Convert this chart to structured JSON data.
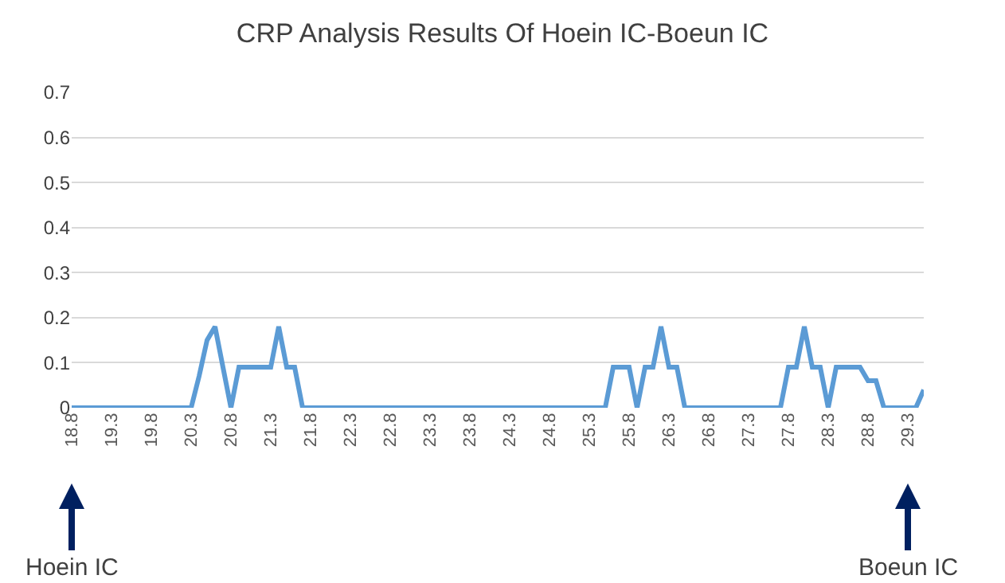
{
  "chart_data": {
    "type": "line",
    "title": "CRP Analysis Results Of Hoein IC-Boeun IC",
    "x": [
      18.8,
      18.9,
      19.0,
      19.1,
      19.2,
      19.3,
      19.4,
      19.5,
      19.6,
      19.7,
      19.8,
      19.9,
      20.0,
      20.1,
      20.2,
      20.3,
      20.4,
      20.5,
      20.6,
      20.7,
      20.8,
      20.9,
      21.0,
      21.1,
      21.2,
      21.3,
      21.4,
      21.5,
      21.6,
      21.7,
      21.8,
      21.9,
      22.0,
      22.1,
      22.2,
      22.3,
      22.4,
      22.5,
      22.6,
      22.7,
      22.8,
      22.9,
      23.0,
      23.1,
      23.2,
      23.3,
      23.4,
      23.5,
      23.6,
      23.7,
      23.8,
      23.9,
      24.0,
      24.1,
      24.2,
      24.3,
      24.4,
      24.5,
      24.6,
      24.7,
      24.8,
      24.9,
      25.0,
      25.1,
      25.2,
      25.3,
      25.4,
      25.5,
      25.6,
      25.7,
      25.8,
      25.9,
      26.0,
      26.1,
      26.2,
      26.3,
      26.4,
      26.5,
      26.6,
      26.7,
      26.8,
      26.9,
      27.0,
      27.1,
      27.2,
      27.3,
      27.4,
      27.5,
      27.6,
      27.7,
      27.8,
      27.9,
      28.0,
      28.1,
      28.2,
      28.3,
      28.4,
      28.5,
      28.6,
      28.7,
      28.8,
      28.9,
      29.0,
      29.1,
      29.2,
      29.3,
      29.4,
      29.5
    ],
    "series": [
      {
        "color": "#5b9bd5",
        "values": [
          0,
          0,
          0,
          0,
          0,
          0,
          0,
          0,
          0,
          0,
          0,
          0,
          0,
          0,
          0,
          0,
          0.07,
          0.15,
          0.18,
          0.09,
          0,
          0.09,
          0.09,
          0.09,
          0.09,
          0.09,
          0.18,
          0.09,
          0.09,
          0,
          0,
          0,
          0,
          0,
          0,
          0,
          0,
          0,
          0,
          0,
          0,
          0,
          0,
          0,
          0,
          0,
          0,
          0,
          0,
          0,
          0,
          0,
          0,
          0,
          0,
          0,
          0,
          0,
          0,
          0,
          0,
          0,
          0,
          0,
          0,
          0,
          0,
          0,
          0.09,
          0.09,
          0.09,
          0,
          0.09,
          0.09,
          0.18,
          0.09,
          0.09,
          0,
          0,
          0,
          0,
          0,
          0,
          0,
          0,
          0,
          0,
          0,
          0,
          0,
          0.09,
          0.09,
          0.18,
          0.09,
          0.09,
          0,
          0.09,
          0.09,
          0.09,
          0.09,
          0.06,
          0.06,
          0,
          0,
          0,
          0,
          0,
          0.04
        ]
      }
    ],
    "xlim": [
      18.8,
      29.5
    ],
    "xticks": [
      18.8,
      19.3,
      19.8,
      20.3,
      20.8,
      21.3,
      21.8,
      22.3,
      22.8,
      23.3,
      23.8,
      24.3,
      24.8,
      25.3,
      25.8,
      26.3,
      26.8,
      27.3,
      27.8,
      28.3,
      28.8,
      29.3
    ],
    "ylim": [
      0,
      0.7
    ],
    "yticks": [
      0,
      0.1,
      0.2,
      0.3,
      0.4,
      0.5,
      0.6,
      0.7
    ],
    "grid": "y",
    "marker": "none",
    "line_style": "solid",
    "annotations": [
      {
        "text": "Hoein IC",
        "x": 18.8
      },
      {
        "text": "Boeun IC",
        "x": 29.3
      }
    ]
  }
}
